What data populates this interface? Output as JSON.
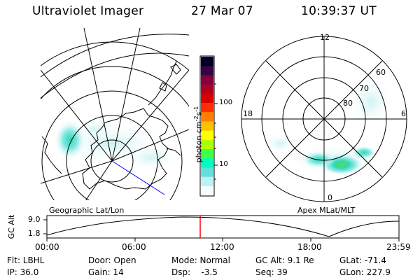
{
  "header": {
    "instrument": "Ultraviolet Imager",
    "date": "27 Mar 07",
    "time": "10:39:37 UT"
  },
  "panels": {
    "left_label": "Geographic Lat/Lon",
    "right_label": "Apex MLat/MLT"
  },
  "colorbar": {
    "unit_label": "photon cm",
    "unit_exp1": "-2",
    "unit_mid": "s",
    "unit_exp2": "-1",
    "ticks": [
      "100",
      "10"
    ],
    "colors": [
      "#000020",
      "#3a0040",
      "#800040",
      "#b00020",
      "#d80000",
      "#ff3000",
      "#ff8000",
      "#ffc000",
      "#ffff00",
      "#b0ff00",
      "#40ff40",
      "#00ffc0",
      "#60e0e0",
      "#c0f0f0",
      "#f0ffff"
    ]
  },
  "polar_grid": {
    "mlt_labels": {
      "top": "12",
      "left": "18",
      "right": "6",
      "bottom": "0"
    },
    "lat_labels": [
      "60",
      "70",
      "80"
    ]
  },
  "orbit_plot": {
    "ylabel": "GC Alt",
    "yticks": [
      "9.0",
      "1.8"
    ],
    "xticks": [
      "00:00",
      "06:00",
      "12:00",
      "18:00",
      "23:59"
    ],
    "current_marker_label": ""
  },
  "footer": {
    "col1": [
      "Flt: LBHL",
      "IP: 36.0"
    ],
    "col2": [
      "Door: Open",
      "Gain: 14"
    ],
    "col3": [
      "Mode: Normal",
      "Dsp:    -3.5"
    ],
    "col4": [
      "GC Alt: 9.1 Re",
      "Seq: 39"
    ],
    "col5": [
      "GLat: -71.4",
      "GLon: 227.9"
    ]
  }
}
